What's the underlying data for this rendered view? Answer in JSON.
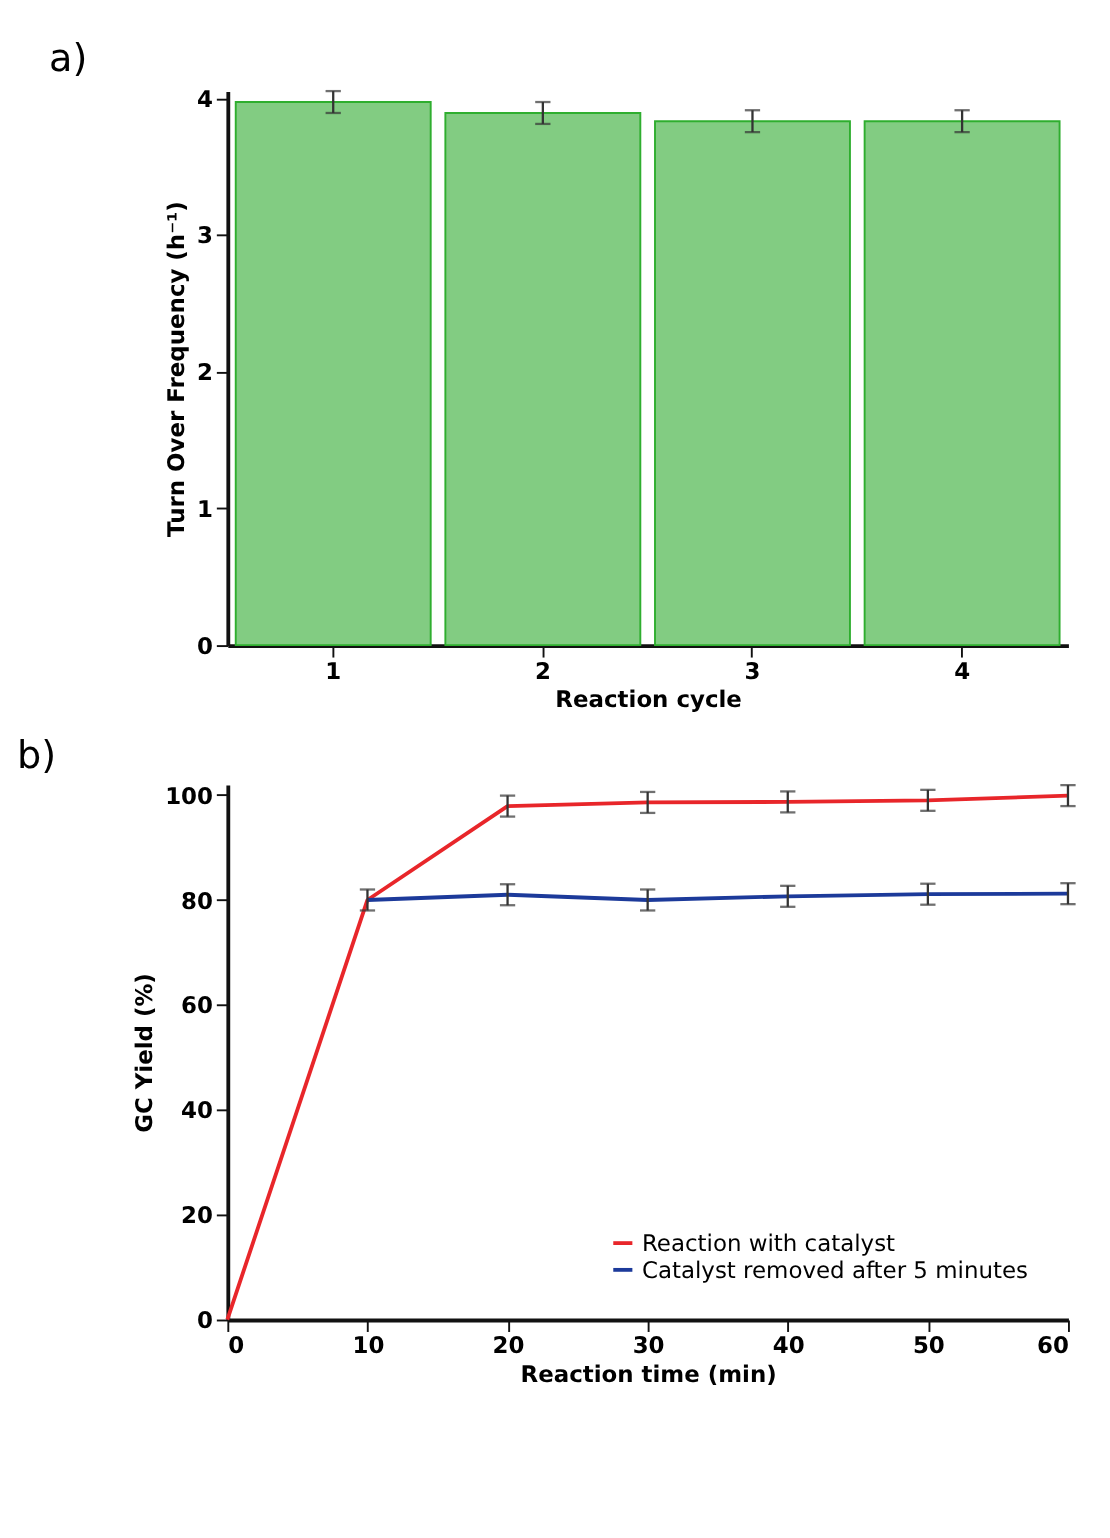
{
  "chart_data": [
    {
      "type": "bar",
      "title": "a)",
      "xlabel": "Reaction cycle",
      "ylabel": "Turn Over Frequency (h⁻¹)",
      "categories": [
        "1",
        "2",
        "3",
        "4"
      ],
      "values": [
        3.97,
        3.89,
        3.83,
        3.83
      ],
      "errors": [
        0.08,
        0.08,
        0.08,
        0.08
      ],
      "color": "#82cc82",
      "ylim": [
        0,
        4.05
      ],
      "yticks": [
        0,
        1,
        2,
        3,
        4
      ],
      "grid": false
    },
    {
      "type": "line",
      "title": "b)",
      "xlabel": "Reaction time (min)",
      "ylabel": "GC Yield (%)",
      "series": [
        {
          "name": "Reaction with catalyst",
          "color": "#e8262a",
          "x": [
            0,
            10,
            20,
            30,
            40,
            50,
            60
          ],
          "values": [
            0,
            80,
            97.9,
            98.6,
            98.7,
            99,
            99.9
          ],
          "errors": [
            null,
            2,
            2,
            2,
            2,
            2,
            2
          ]
        },
        {
          "name": "Catalyst removed after 5 minutes",
          "color": "#1c3a9a",
          "x": [
            10,
            20,
            30,
            40,
            50,
            60
          ],
          "values": [
            80,
            81,
            80,
            80.7,
            81.1,
            81.2
          ],
          "errors": [
            null,
            2,
            2,
            2,
            2,
            2
          ]
        }
      ],
      "xlim": [
        0,
        60
      ],
      "xticks": [
        0,
        10,
        20,
        30,
        40,
        50,
        60
      ],
      "ylim": [
        0,
        102
      ],
      "yticks": [
        0,
        20,
        40,
        60,
        80,
        100
      ],
      "grid": false,
      "legend": "bottom right",
      "marker": "none",
      "line_style": "solid"
    }
  ]
}
